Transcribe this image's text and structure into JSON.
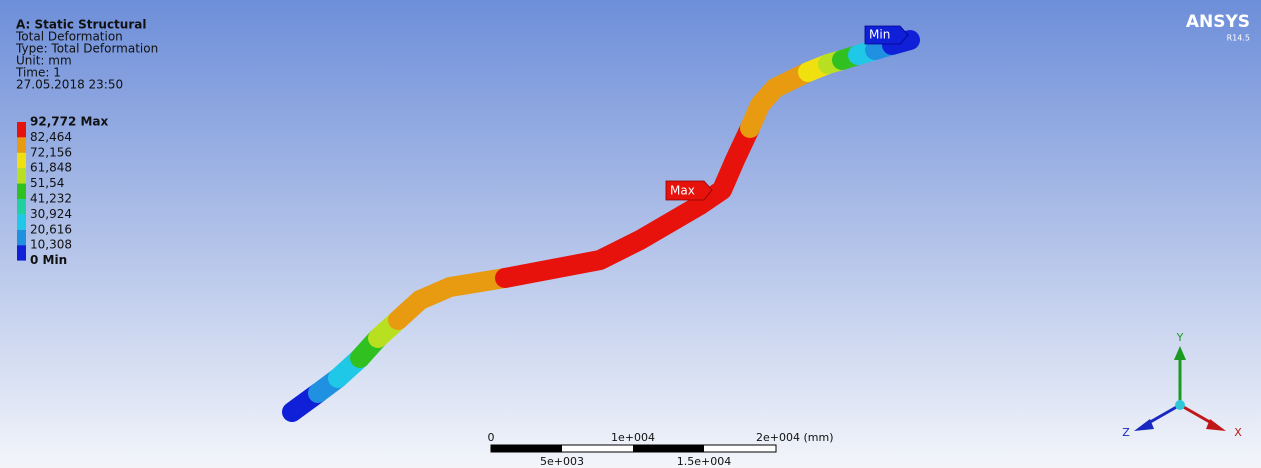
{
  "header": {
    "title": "A: Static Structural",
    "lines": [
      "Total Deformation",
      "Type: Total Deformation",
      "Unit: mm",
      "Time: 1",
      "27.05.2018 23:50"
    ]
  },
  "legend": {
    "labels": [
      "92,772 Max",
      "82,464",
      "72,156",
      "61,848",
      "51,54",
      "41,232",
      "30,924",
      "20,616",
      "10,308",
      "0 Min"
    ],
    "colors": [
      "#e8120c",
      "#e89a10",
      "#f0e010",
      "#b8e020",
      "#30c020",
      "#20d0a0",
      "#20c8e8",
      "#2090e0",
      "#1020d8"
    ]
  },
  "probes": {
    "max": "Max",
    "min": "Min"
  },
  "scale_bar": {
    "top_labels": [
      "0",
      "1e+004",
      "2e+004 (mm)"
    ],
    "bottom_labels": [
      "5e+003",
      "1.5e+004"
    ]
  },
  "triad": {
    "x": "X",
    "y": "Y",
    "z": "Z"
  },
  "logo": {
    "name": "ANSYS",
    "version": "R14.5"
  }
}
